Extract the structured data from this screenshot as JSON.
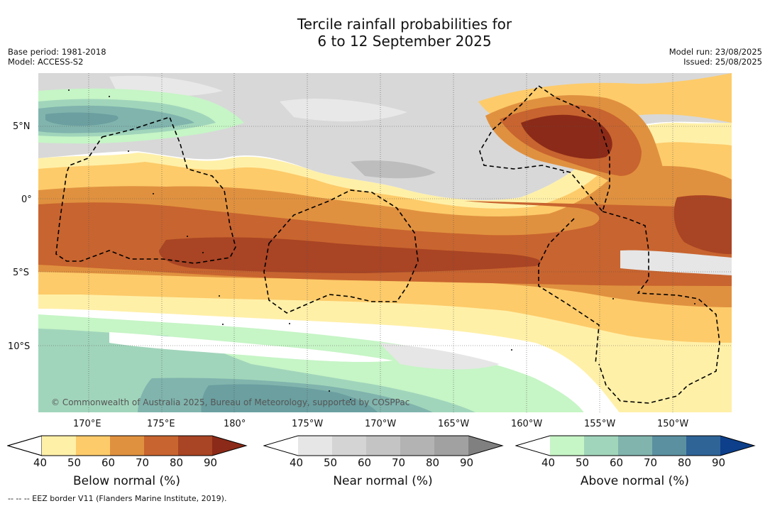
{
  "title": {
    "line1": "Tercile rainfall probabilities for",
    "line2": "6 to 12 September 2025"
  },
  "meta_left": {
    "base_period": "Base period: 1981-2018",
    "model": "Model: ACCESS-S2"
  },
  "meta_right": {
    "model_run": "Model run: 23/08/2025",
    "issued": "Issued: 25/08/2025"
  },
  "lat_labels": [
    "5°N",
    "0°",
    "5°S",
    "10°S"
  ],
  "lon_labels": [
    "170°E",
    "175°E",
    "180°",
    "175°W",
    "170°W",
    "165°W",
    "160°W",
    "155°W",
    "150°W"
  ],
  "copyright": "© Commonwealth of Australia 2025, Bureau of Meteorology, supported by COSPPac",
  "colorbars": [
    {
      "caption": "Below normal (%)",
      "ticks": [
        "40",
        "50",
        "60",
        "70",
        "80",
        "90"
      ],
      "colors": [
        "#fff0a8",
        "#fdcb6a",
        "#e0913f",
        "#c8642f",
        "#a94424",
        "#8b2a18"
      ]
    },
    {
      "caption": "Near normal (%)",
      "ticks": [
        "40",
        "50",
        "60",
        "70",
        "80",
        "90"
      ],
      "colors": [
        "#e6e6e6",
        "#d4d4d4",
        "#c4c4c4",
        "#b3b3b3",
        "#a1a1a1",
        "#808080"
      ]
    },
    {
      "caption": "Above normal (%)",
      "ticks": [
        "40",
        "50",
        "60",
        "70",
        "80",
        "90"
      ],
      "colors": [
        "#c6f5c6",
        "#a1d5bb",
        "#80b4ad",
        "#5b90a1",
        "#2f6497",
        "#0d3f8a"
      ]
    }
  ],
  "footnote": "--  --  -- EEZ border V11 (Flanders Marine Institute, 2019).",
  "colors": {
    "below": [
      "#fff0a8",
      "#fdcb6a",
      "#e0913f",
      "#c8642f",
      "#a94424",
      "#8b2a18"
    ],
    "near": [
      "#e6e6e6",
      "#d4d4d4",
      "#c4c4c4",
      "#b3b3b3",
      "#a1a1a1"
    ],
    "above": [
      "#c6f5c6",
      "#a1d5bb",
      "#80b4ad",
      "#5b90a1"
    ]
  }
}
